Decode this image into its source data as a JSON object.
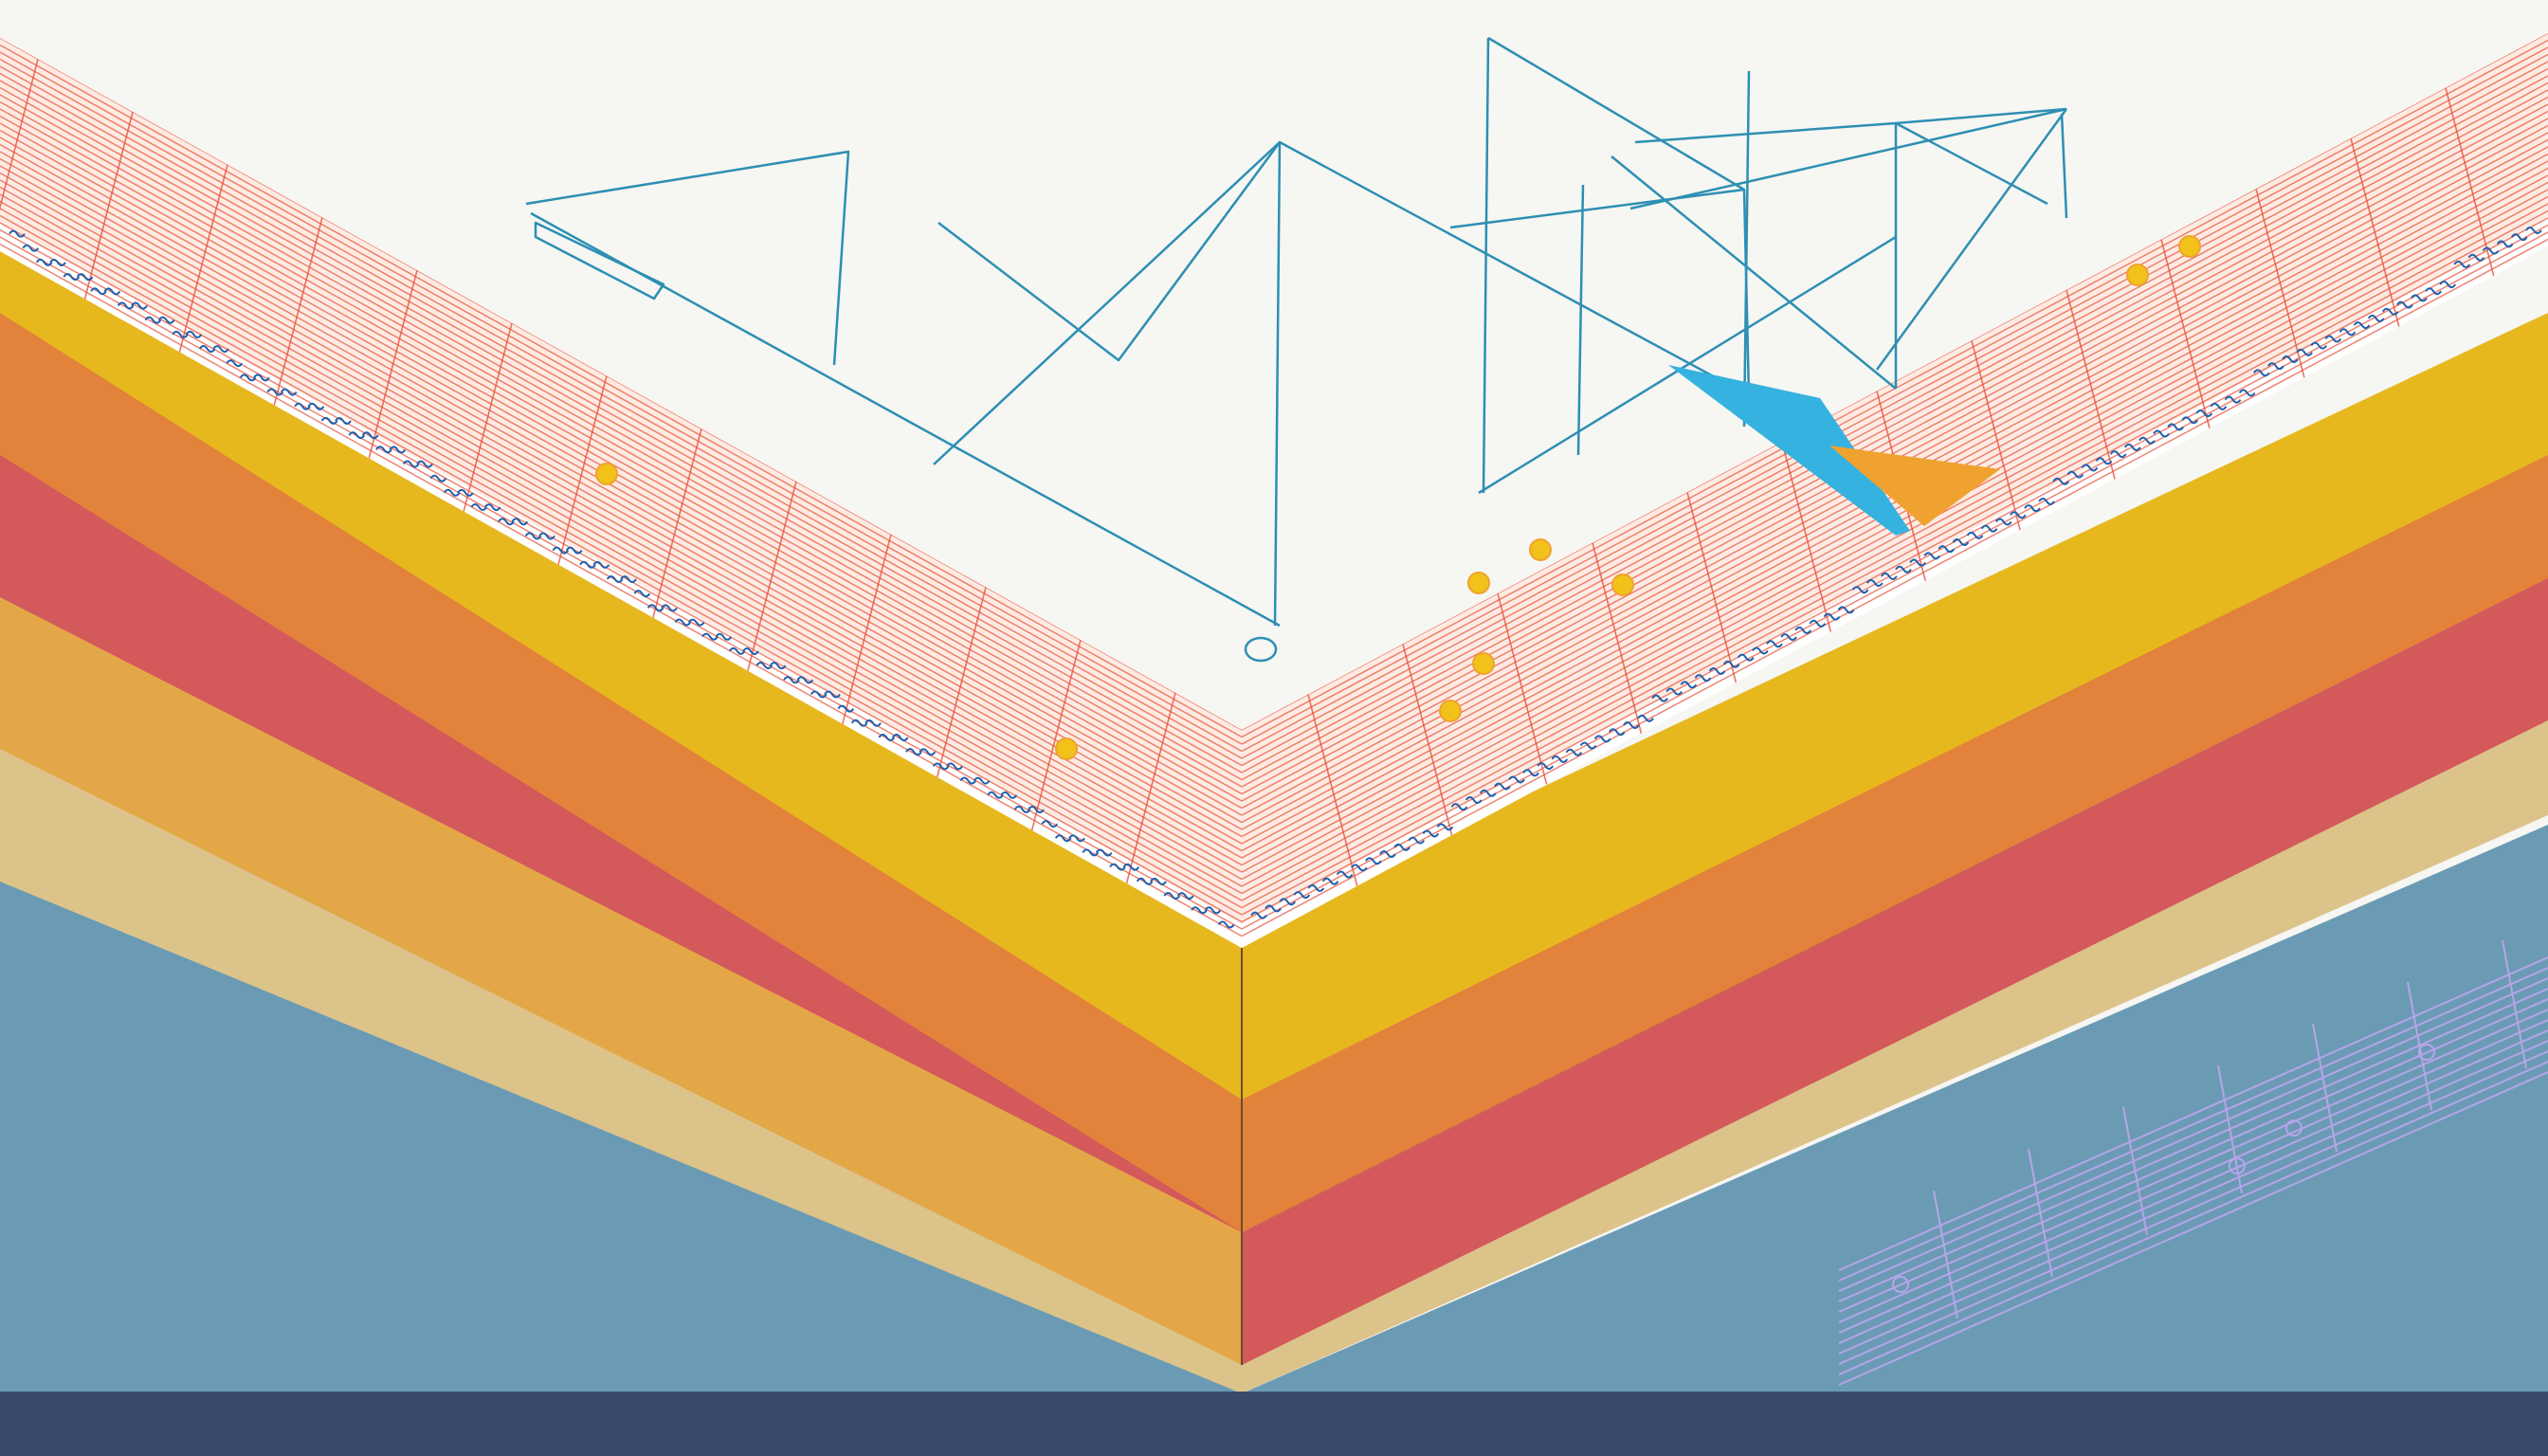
{
  "colors": {
    "background": "#f6f6f3",
    "paper_lines": "#e8503a",
    "paper_tint": "#fde6dc",
    "paper_notation": "#1f5fae",
    "yellow_band": "#e6b81e",
    "orange_band": "#e3823b",
    "red_band": "#d4595b",
    "amber_band": "#e4a748",
    "tan_band": "#dcc38a",
    "blue_ground": "#6b9bb4",
    "navy_strip": "#3a4a6b",
    "sketch_lines": "#2d8fb3",
    "accent_cyan": "#35b2e0",
    "accent_orange": "#f0a230",
    "dot_yellow": "#f2c21a",
    "violet_sketch": "#b7a4ea"
  },
  "icons": {
    "paper_layer": "lined-paper-sheet",
    "sketch": "geometric-triangle-sketch",
    "staff": "music-staff-sketch"
  }
}
